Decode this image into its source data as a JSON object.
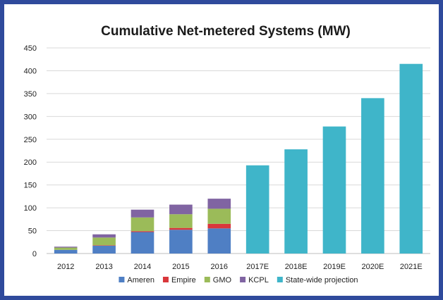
{
  "chart_data": {
    "type": "bar",
    "stacked": true,
    "title": "Cumulative Net-metered Systems (MW)",
    "xlabel": "",
    "ylabel": "",
    "ylim": [
      0,
      450
    ],
    "yticks": [
      0,
      50,
      100,
      150,
      200,
      250,
      300,
      350,
      400,
      450
    ],
    "grid": true,
    "legend_position": "bottom",
    "categories": [
      "2012",
      "2013",
      "2014",
      "2015",
      "2016",
      "2017E",
      "2018E",
      "2019E",
      "2020E",
      "2021E"
    ],
    "series": [
      {
        "name": "Ameren",
        "color": "#4f7fc4",
        "values": [
          8,
          17,
          47,
          52,
          55,
          0,
          0,
          0,
          0,
          0
        ]
      },
      {
        "name": "Empire",
        "color": "#d9373b",
        "values": [
          0,
          1,
          2,
          4,
          10,
          0,
          0,
          0,
          0,
          0
        ]
      },
      {
        "name": "GMO",
        "color": "#9bbb59",
        "values": [
          5,
          17,
          30,
          30,
          33,
          0,
          0,
          0,
          0,
          0
        ]
      },
      {
        "name": "KCPL",
        "color": "#8064a2",
        "values": [
          2,
          7,
          17,
          21,
          22,
          0,
          0,
          0,
          0,
          0
        ]
      },
      {
        "name": "State-wide projection",
        "color": "#3fb5c9",
        "values": [
          0,
          0,
          0,
          0,
          0,
          193,
          228,
          278,
          340,
          415
        ]
      }
    ]
  }
}
